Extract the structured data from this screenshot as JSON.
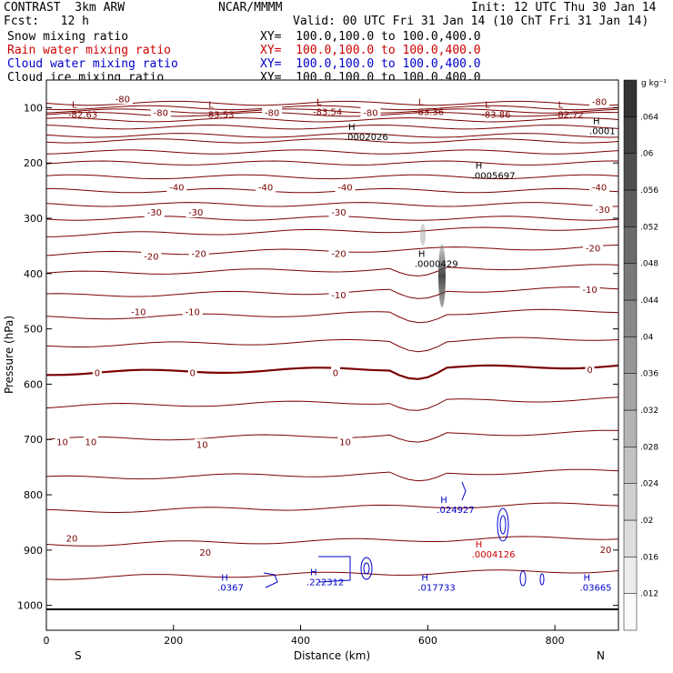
{
  "header": {
    "model": "CONTRAST  3km ARW",
    "org": "NCAR/MMMM",
    "init": "Init: 12 UTC Thu 30 Jan 14",
    "fcst": "Fcst:   12 h",
    "valid": "Valid: 00 UTC Fri 31 Jan 14 (10 ChT Fri 31 Jan 14)"
  },
  "fields": [
    {
      "name": "Snow mixing ratio",
      "xy": "XY=  100.0,100.0 to 100.0,400.0",
      "color": "#000000"
    },
    {
      "name": "Rain water mixing ratio",
      "xy": "XY=  100.0,100.0 to 100.0,400.0",
      "color": "#cc0000"
    },
    {
      "name": "Cloud water mixing ratio",
      "xy": "XY=  100.0,100.0 to 100.0,400.0",
      "color": "#0000cc"
    },
    {
      "name": "Cloud ice mixing ratio",
      "xy": "XY=  100.0,100.0 to 100.0,400.0",
      "color": "#000000"
    }
  ],
  "chart_data": {
    "type": "contour",
    "xlabel": "Distance (km)",
    "ylabel": "Pressure (hPa)",
    "xlim": [
      0,
      900
    ],
    "ylim": [
      1045,
      50
    ],
    "xticks": [
      "0",
      "200",
      "400",
      "600",
      "800"
    ],
    "xtick_values": [
      0,
      200,
      400,
      600,
      800
    ],
    "yticks": [
      "100",
      "200",
      "300",
      "400",
      "500",
      "600",
      "700",
      "800",
      "900",
      "1000"
    ],
    "ytick_values": [
      100,
      200,
      300,
      400,
      500,
      600,
      700,
      800,
      900,
      1000
    ],
    "endpoints": {
      "left": "S",
      "right": "N"
    },
    "colorbar": {
      "unit": "g kg⁻¹",
      "labels": [
        ".012",
        ".016",
        ".02",
        ".024",
        ".028",
        ".032",
        ".036",
        ".04",
        ".044",
        ".048",
        ".052",
        ".056",
        ".06",
        ".064"
      ],
      "values": [
        0.012,
        0.016,
        0.02,
        0.024,
        0.028,
        0.032,
        0.036,
        0.04,
        0.044,
        0.048,
        0.052,
        0.056,
        0.06,
        0.064
      ]
    },
    "temperature_labels": [
      {
        "text": "-80",
        "x": 120,
        "p": 85
      },
      {
        "text": "-80",
        "x": 180,
        "p": 110
      },
      {
        "text": "-80",
        "x": 355,
        "p": 110
      },
      {
        "text": "-80",
        "x": 510,
        "p": 110
      },
      {
        "text": "-80",
        "x": 870,
        "p": 90
      },
      {
        "text": "-40",
        "x": 205,
        "p": 245
      },
      {
        "text": "-40",
        "x": 345,
        "p": 245
      },
      {
        "text": "-40",
        "x": 470,
        "p": 245
      },
      {
        "text": "-40",
        "x": 870,
        "p": 245
      },
      {
        "text": "-30",
        "x": 170,
        "p": 290
      },
      {
        "text": "-30",
        "x": 235,
        "p": 290
      },
      {
        "text": "-30",
        "x": 460,
        "p": 290
      },
      {
        "text": "-30",
        "x": 875,
        "p": 285
      },
      {
        "text": "-20",
        "x": 165,
        "p": 370
      },
      {
        "text": "-20",
        "x": 240,
        "p": 365
      },
      {
        "text": "-20",
        "x": 460,
        "p": 365
      },
      {
        "text": "-20",
        "x": 860,
        "p": 355
      },
      {
        "text": "-10",
        "x": 145,
        "p": 470
      },
      {
        "text": "-10",
        "x": 230,
        "p": 470
      },
      {
        "text": "-10",
        "x": 460,
        "p": 440
      },
      {
        "text": "-10",
        "x": 855,
        "p": 430
      },
      {
        "text": "0",
        "x": 80,
        "p": 580
      },
      {
        "text": "0",
        "x": 230,
        "p": 580
      },
      {
        "text": "0",
        "x": 455,
        "p": 580
      },
      {
        "text": "0",
        "x": 855,
        "p": 575
      },
      {
        "text": "10",
        "x": 25,
        "p": 705
      },
      {
        "text": "10",
        "x": 70,
        "p": 705
      },
      {
        "text": "10",
        "x": 245,
        "p": 710
      },
      {
        "text": "10",
        "x": 470,
        "p": 705
      },
      {
        "text": "20",
        "x": 40,
        "p": 880
      },
      {
        "text": "20",
        "x": 250,
        "p": 905
      },
      {
        "text": "20",
        "x": 880,
        "p": 900
      }
    ],
    "extrema": [
      {
        "mark": "L",
        "value": "-82.63",
        "x": 40,
        "p": 110,
        "color": "#7a0000"
      },
      {
        "mark": "L",
        "value": "-83.53",
        "x": 255,
        "p": 110,
        "color": "#7a0000"
      },
      {
        "mark": "L",
        "value": "-83.54",
        "x": 425,
        "p": 105,
        "color": "#7a0000"
      },
      {
        "mark": "L",
        "value": "-83.36",
        "x": 585,
        "p": 105,
        "color": "#7a0000"
      },
      {
        "mark": "L",
        "value": "-83.86",
        "x": 690,
        "p": 110,
        "color": "#7a0000"
      },
      {
        "mark": "L",
        "value": "-82.72",
        "x": 805,
        "p": 110,
        "color": "#7a0000"
      },
      {
        "mark": "H",
        "value": ".0002026",
        "x": 475,
        "p": 150,
        "color": "#000000"
      },
      {
        "mark": "H",
        "value": ".0001",
        "x": 860,
        "p": 140,
        "color": "#000000"
      },
      {
        "mark": "H",
        "value": ".0005697",
        "x": 675,
        "p": 220,
        "color": "#000000"
      },
      {
        "mark": "H",
        "value": ".0000429",
        "x": 585,
        "p": 380,
        "color": "#000000"
      },
      {
        "mark": "H",
        "value": ".024927",
        "x": 620,
        "p": 825,
        "color": "#0000cc"
      },
      {
        "mark": "H",
        "value": ".0004126",
        "x": 675,
        "p": 905,
        "color": "#cc0000"
      },
      {
        "mark": "H",
        "value": ".222312",
        "x": 415,
        "p": 955,
        "color": "#0000cc"
      },
      {
        "mark": "H",
        "value": ".017733",
        "x": 590,
        "p": 965,
        "color": "#0000cc"
      },
      {
        "mark": "H",
        "value": ".03665",
        "x": 845,
        "p": 965,
        "color": "#0000cc"
      },
      {
        "mark": "H",
        "value": ".0367",
        "x": 275,
        "p": 965,
        "color": "#0000cc"
      }
    ]
  }
}
